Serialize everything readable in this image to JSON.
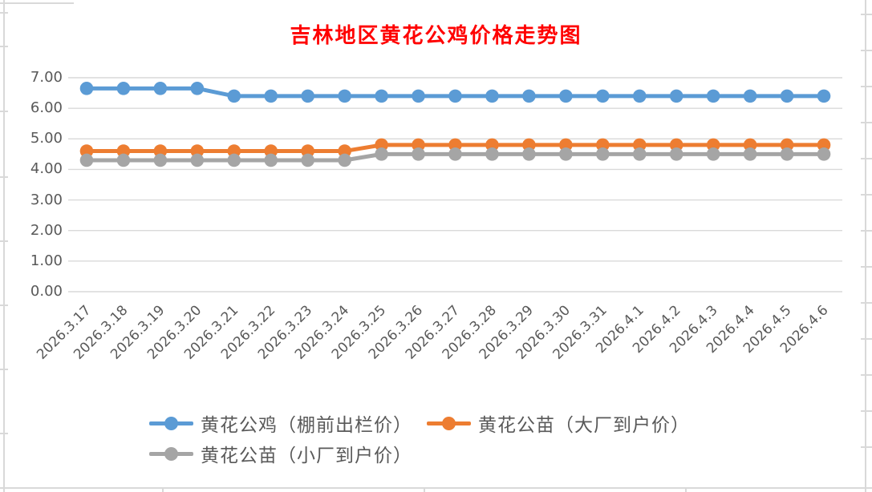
{
  "chart_data": {
    "type": "line",
    "title": "吉林地区黄花公鸡价格走势图",
    "title_color": "#FF0000",
    "categories": [
      "2026.3.17",
      "2026.3.18",
      "2026.3.19",
      "2026.3.20",
      "2026.3.21",
      "2026.3.22",
      "2026.3.23",
      "2026.3.24",
      "2026.3.25",
      "2026.3.26",
      "2026.3.27",
      "2026.3.28",
      "2026.3.29",
      "2026.3.30",
      "2026.3.31",
      "2026.4.1",
      "2026.4.2",
      "2026.4.3",
      "2026.4.4",
      "2026.4.5",
      "2026.4.6"
    ],
    "series": [
      {
        "name": "黄花公鸡（棚前出栏价）",
        "color": "#5B9BD5",
        "values": [
          6.65,
          6.65,
          6.65,
          6.65,
          6.4,
          6.4,
          6.4,
          6.4,
          6.4,
          6.4,
          6.4,
          6.4,
          6.4,
          6.4,
          6.4,
          6.4,
          6.4,
          6.4,
          6.4,
          6.4,
          6.4
        ]
      },
      {
        "name": "黄花公苗（大厂到户价）",
        "color": "#ED7D31",
        "values": [
          4.6,
          4.6,
          4.6,
          4.6,
          4.6,
          4.6,
          4.6,
          4.6,
          4.8,
          4.8,
          4.8,
          4.8,
          4.8,
          4.8,
          4.8,
          4.8,
          4.8,
          4.8,
          4.8,
          4.8,
          4.8
        ]
      },
      {
        "name": "黄花公苗（小厂到户价）",
        "color": "#A5A5A5",
        "values": [
          4.3,
          4.3,
          4.3,
          4.3,
          4.3,
          4.3,
          4.3,
          4.3,
          4.5,
          4.5,
          4.5,
          4.5,
          4.5,
          4.5,
          4.5,
          4.5,
          4.5,
          4.5,
          4.5,
          4.5,
          4.5
        ]
      }
    ],
    "ylim": [
      0,
      7
    ],
    "ytick_labels": [
      "0.00",
      "1.00",
      "2.00",
      "3.00",
      "4.00",
      "5.00",
      "6.00",
      "7.00"
    ],
    "grid": true,
    "legend_position": "bottom",
    "axis_label_color": "#595959",
    "gridline_color": "#D9D9D9"
  }
}
